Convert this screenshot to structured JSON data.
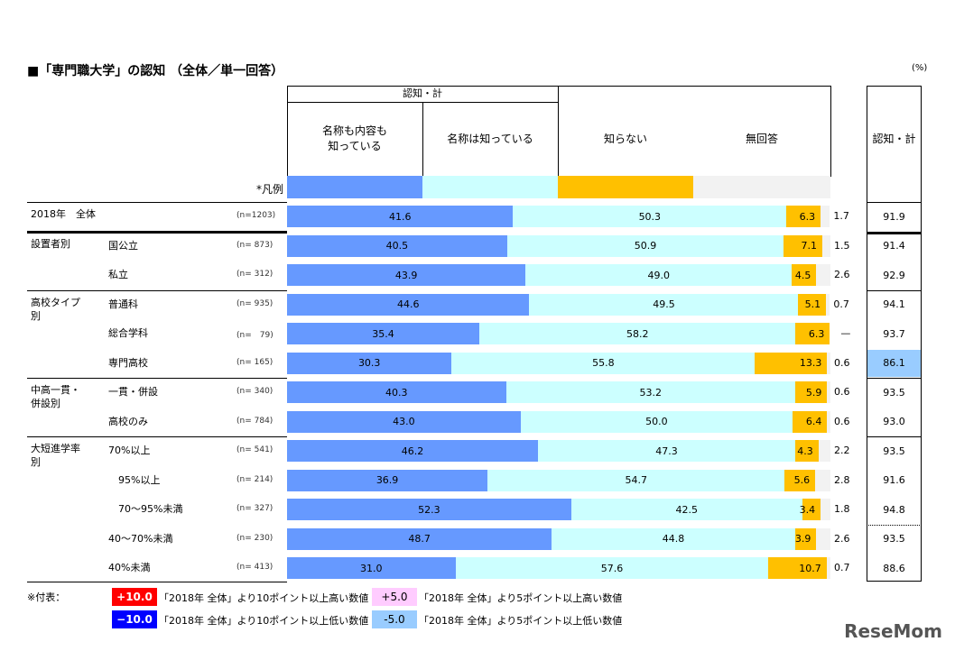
{
  "title": "■「専門職大学」の認知 （全体／単一回答）",
  "unit": "(%)",
  "header": {
    "group": "認知・計",
    "cols": [
      "名称も内容も\n知っている",
      "名称は知っている",
      "知らない",
      "無回答"
    ],
    "total": "認知・計",
    "legend_label": "*凡例"
  },
  "colors": {
    "col1": "#6699ff",
    "col2": "#ccffff",
    "col3": "#ffc000",
    "col4": "#f2f2f2",
    "minus5": "#99ccff",
    "plus5": "#ffccff",
    "plus10": "#ff0000",
    "minus10": "#0000ff"
  },
  "chart_data": {
    "type": "bar",
    "stacked": true,
    "orientation": "horizontal",
    "xlim": [
      0,
      100
    ],
    "series_names": [
      "名称も内容も知っている",
      "名称は知っている",
      "知らない",
      "無回答"
    ],
    "rows": [
      {
        "group": "2018年　全体",
        "label": "",
        "n": "(n=1203)",
        "values": [
          41.6,
          50.3,
          6.3,
          1.7
        ],
        "labels": [
          "41.6",
          "50.3",
          "6.3",
          "1.7"
        ],
        "total": "91.9",
        "highlight": ""
      },
      {
        "group": "設置者別",
        "label": "国公立",
        "n": "(n= 873)",
        "values": [
          40.5,
          50.9,
          7.1,
          1.5
        ],
        "labels": [
          "40.5",
          "50.9",
          "7.1",
          "1.5"
        ],
        "total": "91.4",
        "highlight": ""
      },
      {
        "group": "",
        "label": "私立",
        "n": "(n= 312)",
        "values": [
          43.9,
          49.0,
          4.5,
          2.6
        ],
        "labels": [
          "43.9",
          "49.0",
          "4.5",
          "2.6"
        ],
        "total": "92.9",
        "highlight": ""
      },
      {
        "group": "高校タイプ\n別",
        "label": "普通科",
        "n": "(n= 935)",
        "values": [
          44.6,
          49.5,
          5.1,
          0.7
        ],
        "labels": [
          "44.6",
          "49.5",
          "5.1",
          "0.7"
        ],
        "total": "94.1",
        "highlight": ""
      },
      {
        "group": "",
        "label": "総合学科",
        "n": "(n=　79)",
        "values": [
          35.4,
          58.2,
          6.3,
          0
        ],
        "labels": [
          "35.4",
          "58.2",
          "6.3",
          "—"
        ],
        "total": "93.7",
        "highlight": ""
      },
      {
        "group": "",
        "label": "専門高校",
        "n": "(n= 165)",
        "values": [
          30.3,
          55.8,
          13.3,
          0.6
        ],
        "labels": [
          "30.3",
          "55.8",
          "13.3",
          "0.6"
        ],
        "total": "86.1",
        "highlight": "minus5"
      },
      {
        "group": "中高一貫・\n併設別",
        "label": "一貫・併設",
        "n": "(n= 340)",
        "values": [
          40.3,
          53.2,
          5.9,
          0.6
        ],
        "labels": [
          "40.3",
          "53.2",
          "5.9",
          "0.6"
        ],
        "total": "93.5",
        "highlight": ""
      },
      {
        "group": "",
        "label": "高校のみ",
        "n": "(n= 784)",
        "values": [
          43.0,
          50.0,
          6.4,
          0.6
        ],
        "labels": [
          "43.0",
          "50.0",
          "6.4",
          "0.6"
        ],
        "total": "93.0",
        "highlight": ""
      },
      {
        "group": "大短進学率\n別",
        "label": "70%以上",
        "n": "(n= 541)",
        "values": [
          46.2,
          47.3,
          4.3,
          2.2
        ],
        "labels": [
          "46.2",
          "47.3",
          "4.3",
          "2.2"
        ],
        "total": "93.5",
        "highlight": ""
      },
      {
        "group": "",
        "label": "　95%以上",
        "n": "(n= 214)",
        "values": [
          36.9,
          54.7,
          5.6,
          2.8
        ],
        "labels": [
          "36.9",
          "54.7",
          "5.6",
          "2.8"
        ],
        "total": "91.6",
        "highlight": ""
      },
      {
        "group": "",
        "label": "　70～95%未満",
        "n": "(n= 327)",
        "values": [
          52.3,
          42.5,
          3.4,
          1.8
        ],
        "labels": [
          "52.3",
          "42.5",
          "3.4",
          "1.8"
        ],
        "total": "94.8",
        "highlight": ""
      },
      {
        "group": "",
        "label": "40～70%未満",
        "n": "(n= 230)",
        "values": [
          48.7,
          44.8,
          3.9,
          2.6
        ],
        "labels": [
          "48.7",
          "44.8",
          "3.9",
          "2.6"
        ],
        "total": "93.5",
        "highlight": ""
      },
      {
        "group": "",
        "label": "40%未満",
        "n": "(n= 413)",
        "values": [
          31.0,
          57.6,
          10.7,
          0.7
        ],
        "labels": [
          "31.0",
          "57.6",
          "10.7",
          "0.7"
        ],
        "total": "88.6",
        "highlight": ""
      }
    ]
  },
  "notes": {
    "prefix": "※付表：",
    "items": [
      {
        "badge": "+10.0",
        "text": "「2018年 全体」より10ポイント以上高い数値",
        "color": "plus10"
      },
      {
        "badge": "+5.0",
        "text": "「2018年 全体」より5ポイント以上高い数値",
        "color": "plus5"
      },
      {
        "badge": "−10.0",
        "text": "「2018年 全体」より10ポイント以上低い数値",
        "color": "minus10"
      },
      {
        "badge": "-5.0",
        "text": "「2018年 全体」より5ポイント以上低い数値",
        "color": "minus5"
      }
    ]
  },
  "watermark": "ReseMom"
}
